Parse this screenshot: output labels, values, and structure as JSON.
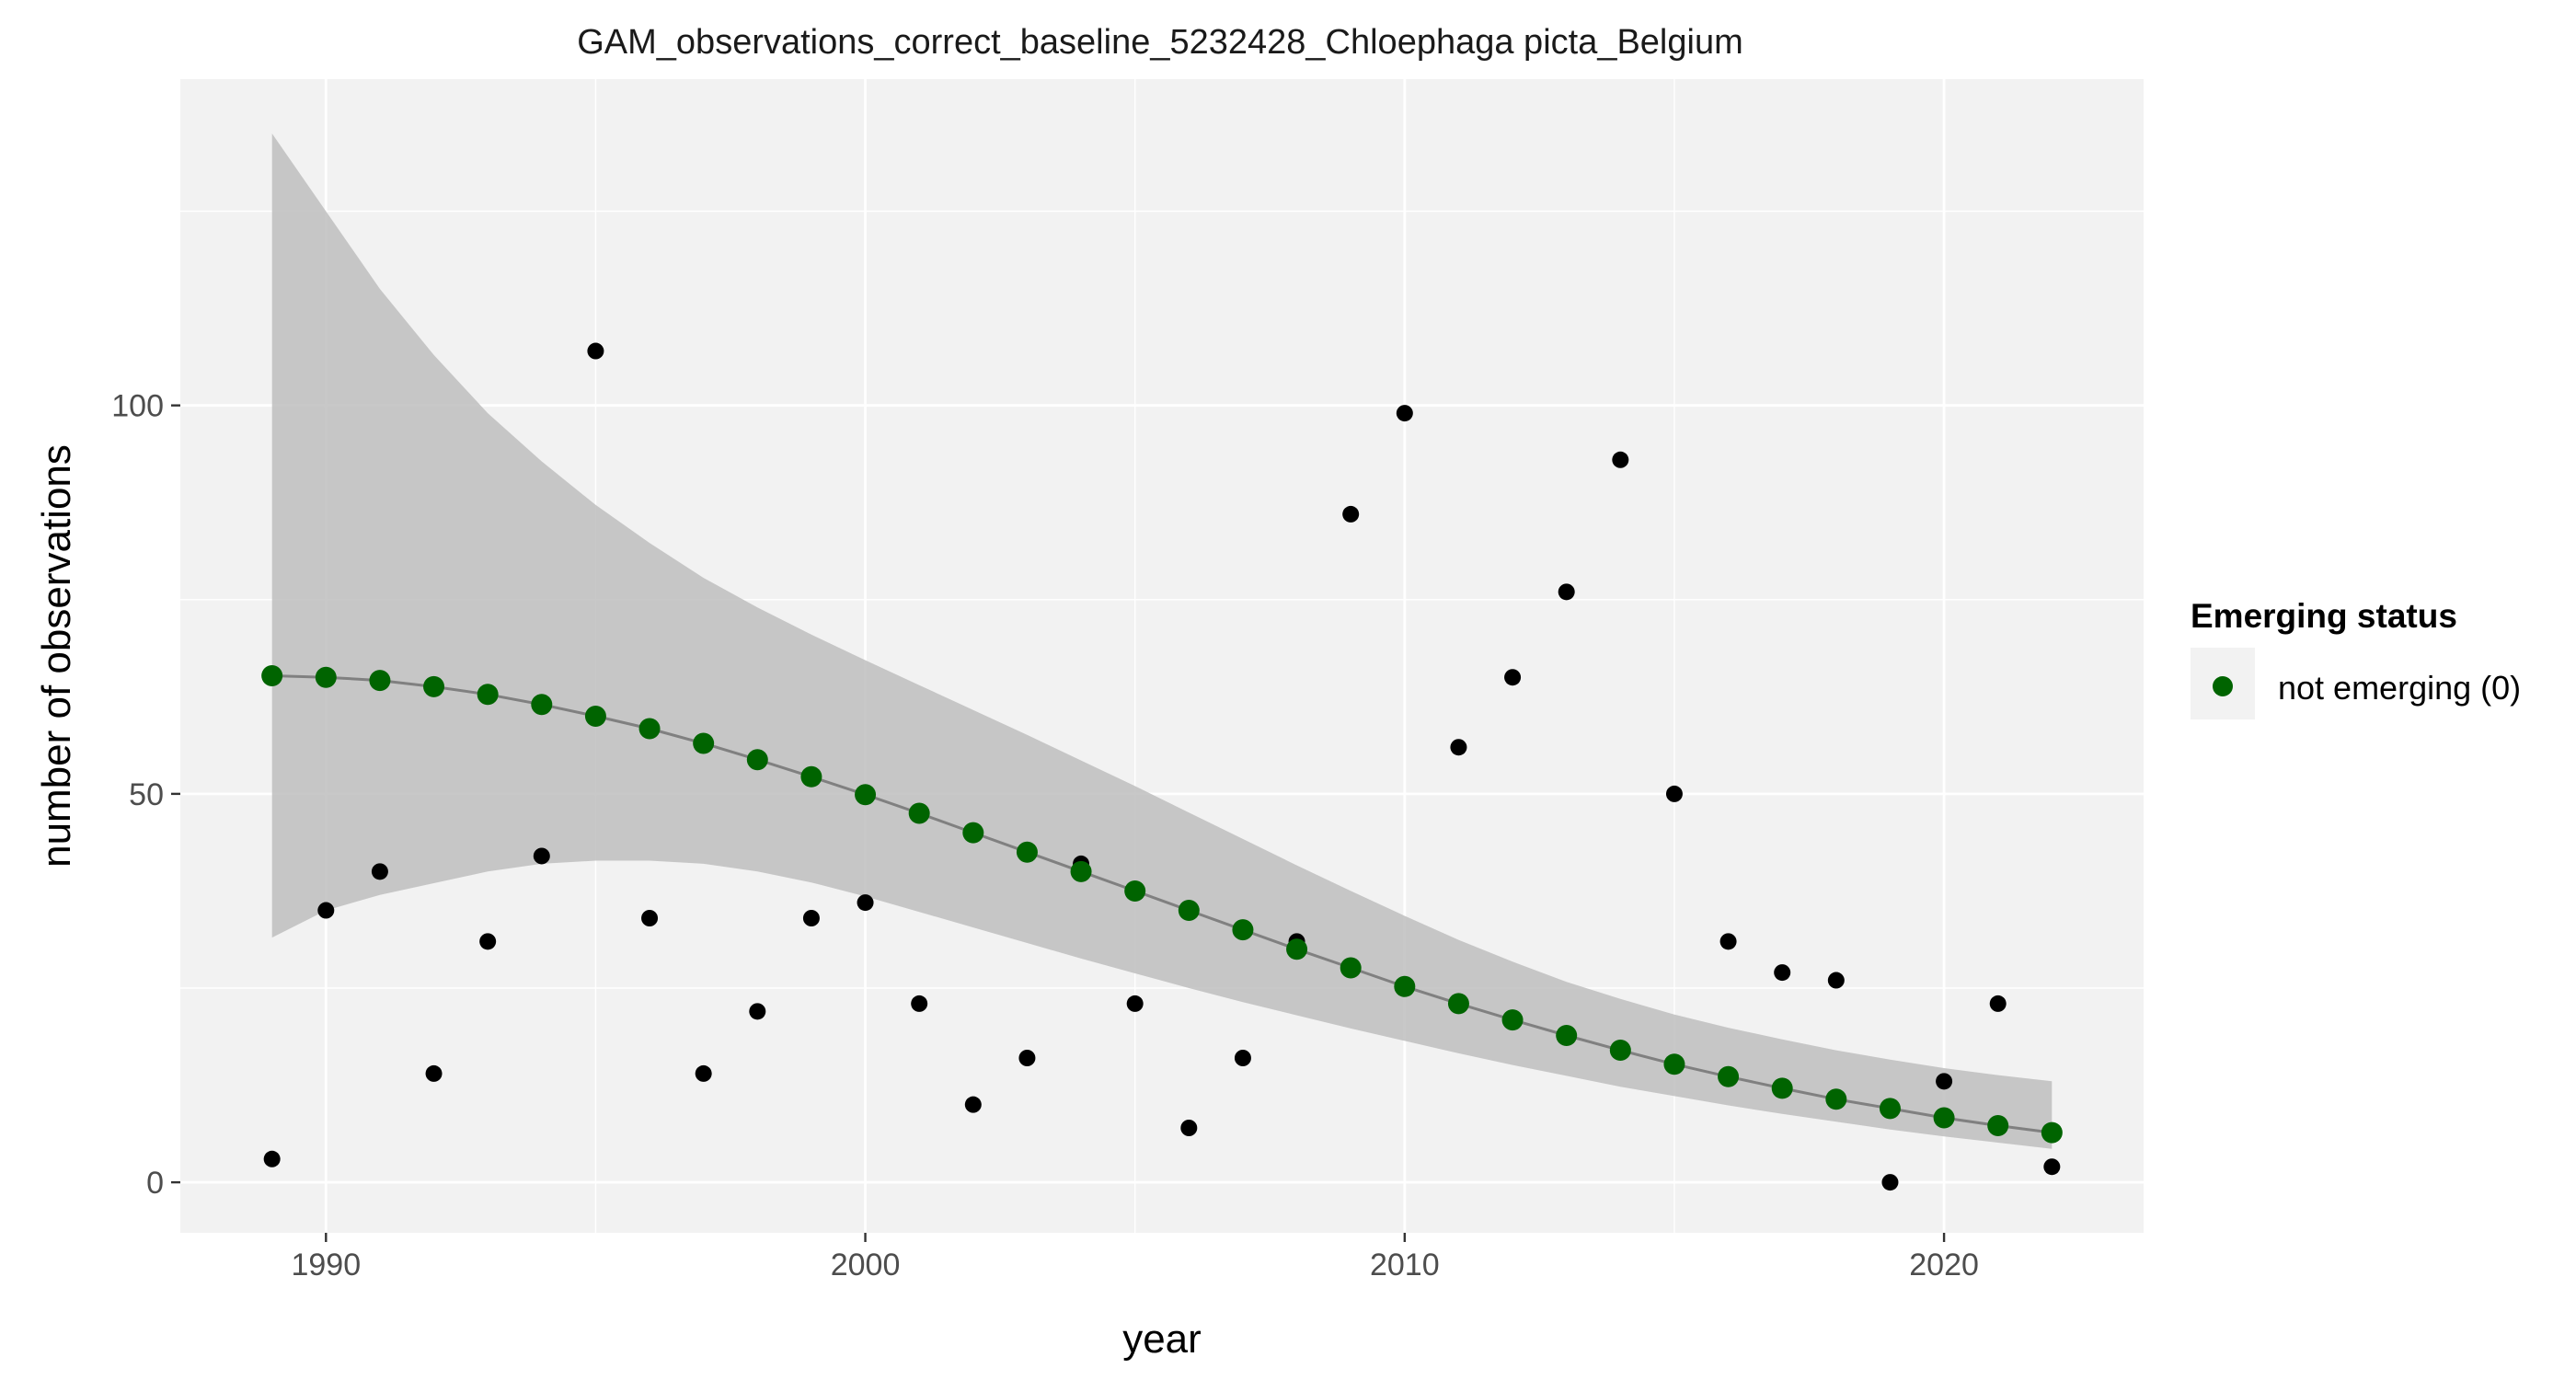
{
  "chart_data": {
    "type": "scatter",
    "title": "GAM_observations_correct_baseline_5232428_Chloephaga picta_Belgium",
    "xlabel": "year",
    "ylabel": "number of observations",
    "xlim": [
      1987.3,
      2023.7
    ],
    "ylim": [
      -6.5,
      142
    ],
    "x_ticks": [
      1990,
      2000,
      2010,
      2020
    ],
    "y_ticks": [
      0,
      50,
      100
    ],
    "x_tick_labels": [
      "1990",
      "2000",
      "2010",
      "2020"
    ],
    "y_tick_labels": [
      "0",
      "50",
      "100"
    ],
    "grid": true,
    "legend": {
      "title": "Emerging status",
      "position": "right",
      "entries": [
        {
          "label": "not emerging (0)",
          "color": "#006400"
        }
      ]
    },
    "colors": {
      "panel": "#f2f2f2",
      "grid": "#ffffff",
      "ribbon": "#bebebe",
      "smooth_line": "#808080",
      "observed_point": "#000000",
      "fitted_point": "#006400"
    },
    "series": [
      {
        "kind": "observed",
        "x": [
          1989,
          1990,
          1991,
          1992,
          1993,
          1994,
          1995,
          1996,
          1997,
          1998,
          1999,
          2000,
          2001,
          2002,
          2003,
          2004,
          2005,
          2006,
          2007,
          2008,
          2009,
          2010,
          2011,
          2012,
          2013,
          2014,
          2015,
          2016,
          2017,
          2018,
          2019,
          2020,
          2021,
          2022
        ],
        "y": [
          3,
          35,
          40,
          14,
          31,
          42,
          107,
          34,
          14,
          22,
          34,
          36,
          23,
          10,
          16,
          41,
          23,
          7,
          16,
          31,
          86,
          99,
          56,
          65,
          76,
          93,
          50,
          31,
          27,
          26,
          0,
          13,
          23,
          2
        ]
      },
      {
        "kind": "fitted",
        "name": "not emerging (0)",
        "x": [
          1989,
          1990,
          1991,
          1992,
          1993,
          1994,
          1995,
          1996,
          1997,
          1998,
          1999,
          2000,
          2001,
          2002,
          2003,
          2004,
          2005,
          2006,
          2007,
          2008,
          2009,
          2010,
          2011,
          2012,
          2013,
          2014,
          2015,
          2016,
          2017,
          2018,
          2019,
          2020,
          2021,
          2022
        ],
        "y": [
          65.2,
          65.0,
          64.6,
          63.8,
          62.8,
          61.5,
          60.0,
          58.4,
          56.5,
          54.4,
          52.2,
          49.9,
          47.5,
          45.0,
          42.5,
          40.0,
          37.5,
          35.0,
          32.5,
          30.0,
          27.6,
          25.2,
          23.0,
          20.9,
          18.9,
          17.0,
          15.2,
          13.6,
          12.1,
          10.7,
          9.5,
          8.3,
          7.3,
          6.4
        ],
        "lower": [
          31.5,
          35.0,
          37.0,
          38.5,
          40.0,
          41.0,
          41.4,
          41.4,
          41.0,
          40.0,
          38.6,
          36.8,
          34.8,
          32.8,
          30.8,
          28.8,
          26.9,
          25.0,
          23.2,
          21.5,
          19.8,
          18.2,
          16.6,
          15.1,
          13.7,
          12.3,
          11.1,
          9.9,
          8.8,
          7.8,
          6.8,
          5.9,
          5.1,
          4.3
        ],
        "upper": [
          135.0,
          125.0,
          115.0,
          106.5,
          99.0,
          92.8,
          87.2,
          82.3,
          77.8,
          74.0,
          70.5,
          67.2,
          64.0,
          60.8,
          57.6,
          54.3,
          51.0,
          47.6,
          44.2,
          40.8,
          37.5,
          34.3,
          31.2,
          28.4,
          25.8,
          23.6,
          21.6,
          19.9,
          18.4,
          17.0,
          15.8,
          14.7,
          13.8,
          13.0
        ]
      }
    ]
  }
}
